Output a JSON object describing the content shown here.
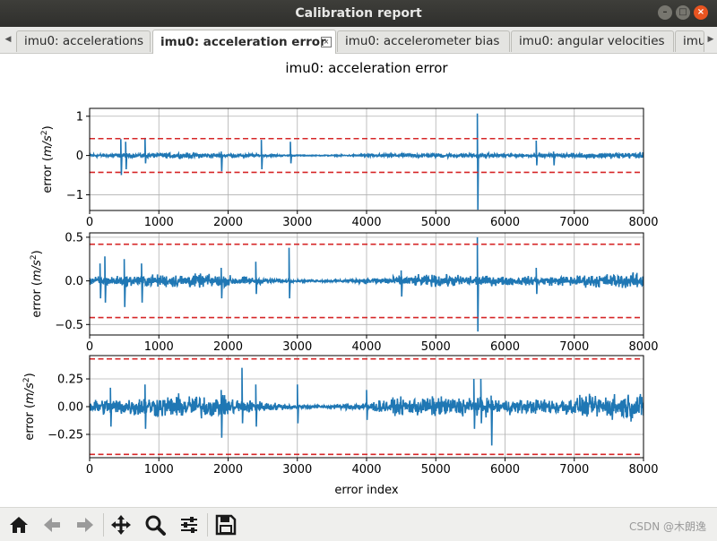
{
  "window": {
    "title": "Calibration report"
  },
  "tabs": [
    {
      "label": "imu0: accelerations",
      "active": false
    },
    {
      "label": "imu0: acceleration error",
      "active": true
    },
    {
      "label": "imu0: accelerometer bias",
      "active": false
    },
    {
      "label": "imu0: angular velocities",
      "active": false
    },
    {
      "label": "imu",
      "active": false
    }
  ],
  "toolbar": {
    "buttons": [
      {
        "name": "home-icon"
      },
      {
        "name": "back-arrow-icon"
      },
      {
        "name": "forward-arrow-icon"
      },
      {
        "name": "pan-icon"
      },
      {
        "name": "zoom-icon"
      },
      {
        "name": "configure-subplots-icon"
      },
      {
        "name": "save-icon"
      }
    ],
    "watermark": "CSDN @木朗逸"
  },
  "chart_data": {
    "type": "line",
    "title": "imu0: acceleration error",
    "xlabel": "error index",
    "colors": {
      "series": "#1f77b4",
      "threshold": "#d62728",
      "grid": "#b0b0b0"
    },
    "grid": true,
    "subplots": [
      {
        "ylabel_prefix": "error (",
        "ylabel_unit": "m/s",
        "ylabel_suffix": ")",
        "xlim": [
          0,
          8000
        ],
        "ylim": [
          -1.4,
          1.2
        ],
        "yticks": [
          -1,
          0,
          1
        ],
        "ytick_labels": [
          "−1",
          "0",
          "1"
        ],
        "xticks": [
          0,
          1000,
          2000,
          3000,
          4000,
          5000,
          6000,
          7000,
          8000
        ],
        "threshold": 0.43,
        "noise": 0.04,
        "spikes": [
          {
            "x": 450,
            "lo": -0.5,
            "hi": 0.42
          },
          {
            "x": 520,
            "lo": -0.35,
            "hi": 0.35
          },
          {
            "x": 800,
            "lo": -0.2,
            "hi": 0.45
          },
          {
            "x": 1900,
            "lo": -0.4,
            "hi": 0.1
          },
          {
            "x": 2480,
            "lo": -0.35,
            "hi": 0.4
          },
          {
            "x": 2900,
            "lo": -0.2,
            "hi": 0.35
          },
          {
            "x": 5600,
            "lo": -1.38,
            "hi": 1.07
          },
          {
            "x": 6450,
            "lo": -0.25,
            "hi": 0.38
          },
          {
            "x": 6700,
            "lo": -0.25,
            "hi": 0.1
          }
        ]
      },
      {
        "ylabel_prefix": "error (",
        "ylabel_unit": "m/s",
        "ylabel_suffix": ")",
        "xlim": [
          0,
          8000
        ],
        "ylim": [
          -0.62,
          0.55
        ],
        "yticks": [
          -0.5,
          0,
          0.5
        ],
        "ytick_labels": [
          "−0.5",
          "0.0",
          "0.5"
        ],
        "xticks": [
          0,
          1000,
          2000,
          3000,
          4000,
          5000,
          6000,
          7000,
          8000
        ],
        "threshold": 0.42,
        "noise": 0.045,
        "spikes": [
          {
            "x": 150,
            "lo": -0.2,
            "hi": 0.2
          },
          {
            "x": 220,
            "lo": -0.25,
            "hi": 0.28
          },
          {
            "x": 500,
            "lo": -0.3,
            "hi": 0.25
          },
          {
            "x": 750,
            "lo": -0.25,
            "hi": 0.2
          },
          {
            "x": 1900,
            "lo": -0.2,
            "hi": 0.15
          },
          {
            "x": 2400,
            "lo": -0.15,
            "hi": 0.22
          },
          {
            "x": 2880,
            "lo": -0.2,
            "hi": 0.38
          },
          {
            "x": 4500,
            "lo": -0.18,
            "hi": 0.12
          },
          {
            "x": 5600,
            "lo": -0.58,
            "hi": 0.5
          },
          {
            "x": 6450,
            "lo": -0.15,
            "hi": 0.15
          }
        ]
      },
      {
        "ylabel_prefix": "error (",
        "ylabel_unit": "m/s",
        "ylabel_suffix": ")",
        "xlim": [
          0,
          8000
        ],
        "ylim": [
          -0.46,
          0.46
        ],
        "yticks": [
          -0.25,
          0,
          0.25
        ],
        "ytick_labels": [
          "−0.25",
          "0.00",
          "0.25"
        ],
        "xticks": [
          0,
          1000,
          2000,
          3000,
          4000,
          5000,
          6000,
          7000,
          8000
        ],
        "threshold": 0.43,
        "noise": 0.06,
        "spikes": [
          {
            "x": 300,
            "lo": -0.18,
            "hi": 0.17
          },
          {
            "x": 800,
            "lo": -0.2,
            "hi": 0.2
          },
          {
            "x": 1900,
            "lo": -0.28,
            "hi": 0.15
          },
          {
            "x": 2200,
            "lo": -0.15,
            "hi": 0.35
          },
          {
            "x": 2400,
            "lo": -0.18,
            "hi": 0.2
          },
          {
            "x": 3000,
            "lo": -0.15,
            "hi": 0.2
          },
          {
            "x": 4000,
            "lo": -0.12,
            "hi": 0.15
          },
          {
            "x": 5550,
            "lo": -0.2,
            "hi": 0.25
          },
          {
            "x": 5650,
            "lo": -0.15,
            "hi": 0.25
          },
          {
            "x": 5800,
            "lo": -0.35,
            "hi": 0.1
          }
        ]
      }
    ]
  }
}
